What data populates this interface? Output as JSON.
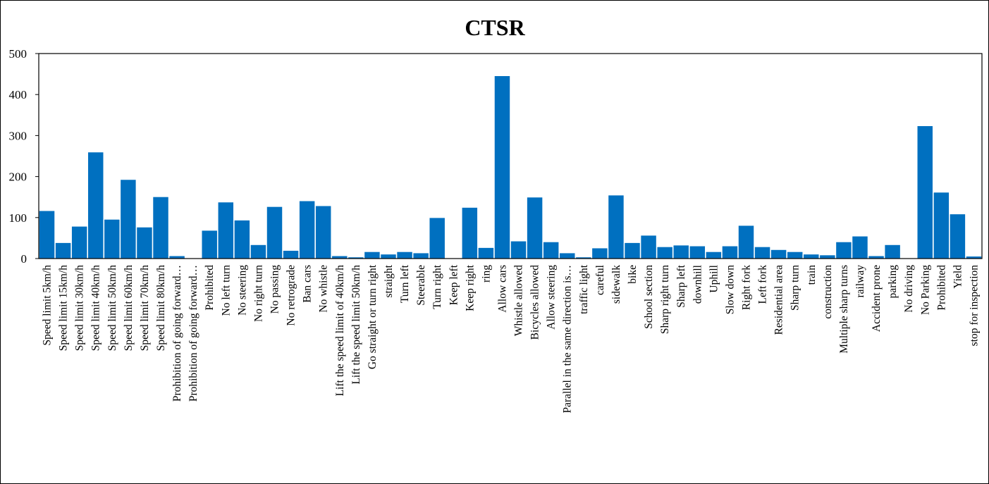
{
  "chart_data": {
    "type": "bar",
    "title": "CTSR",
    "xlabel": "",
    "ylabel": "",
    "ylim": [
      0,
      500
    ],
    "yticks": [
      0,
      100,
      200,
      300,
      400,
      500
    ],
    "grid": false,
    "legend": "none",
    "bar_color": "#0070C0",
    "categories": [
      "Speed limit 5km/h",
      "Speed limit 15km/h",
      "Speed limit 30km/h",
      "Speed limit 40km/h",
      "Speed limit 50km/h",
      "Speed limit 60km/h",
      "Speed limit 70km/h",
      "Speed limit 80km/h",
      "Prohibition of going forward…",
      "Prohibition of going forward…",
      "Prohibited",
      "No left turn",
      "No steering",
      "No right turn",
      "No passing",
      "No retrograde",
      "Ban cars",
      "No whistle",
      "Lift the speed limit of 40km/h",
      "Lift the speed limit 50km/h",
      "Go straight or turn right",
      "straight",
      "Turn left",
      "Steerable",
      "Turn right",
      "Keep left",
      "Keep right",
      "ring",
      "Allow cars",
      "Whistle allowed",
      "Bicycles allowed",
      "Allow steering",
      "Parallel in the same direction is…",
      "traffic light",
      "careful",
      "sidewalk",
      "bike",
      "School section",
      "Sharp right turn",
      "Sharp left",
      "downhill",
      "Uphill",
      "Slow down",
      "Right fork",
      "Left fork",
      "Residential area",
      "Sharp turn",
      "train",
      "construction",
      "Multiple sharp turns",
      "railway",
      "Accident prone",
      "parking",
      "No driving",
      "No Parking",
      "Prohibited",
      "Yield",
      "stop for inspection"
    ],
    "values": [
      116,
      38,
      78,
      259,
      95,
      192,
      76,
      150,
      6,
      0,
      68,
      137,
      93,
      33,
      126,
      19,
      140,
      128,
      6,
      3,
      16,
      10,
      16,
      13,
      99,
      0,
      124,
      26,
      445,
      42,
      149,
      40,
      13,
      3,
      25,
      154,
      38,
      56,
      28,
      32,
      30,
      16,
      30,
      80,
      28,
      21,
      16,
      10,
      8,
      40,
      54,
      6,
      33,
      0,
      323,
      161,
      108,
      5
    ]
  }
}
